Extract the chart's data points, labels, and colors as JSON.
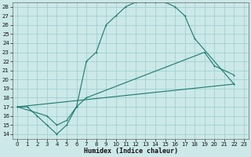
{
  "xlabel": "Humidex (Indice chaleur)",
  "background_color": "#cce8e8",
  "grid_color": "#99cccc",
  "line_color": "#1a7a6e",
  "xlim": [
    -0.5,
    23.5
  ],
  "ylim": [
    13.5,
    28.5
  ],
  "xticks": [
    0,
    1,
    2,
    3,
    4,
    5,
    6,
    7,
    8,
    9,
    10,
    11,
    12,
    13,
    14,
    15,
    16,
    17,
    18,
    19,
    20,
    21,
    22,
    23
  ],
  "yticks": [
    14,
    15,
    16,
    17,
    18,
    19,
    20,
    21,
    22,
    23,
    24,
    25,
    26,
    27,
    28
  ],
  "line1_x": [
    0,
    1,
    2,
    3,
    4,
    5,
    6,
    7,
    8,
    9,
    10,
    11,
    12,
    13,
    14,
    15,
    16,
    17,
    18,
    22
  ],
  "line1_y": [
    17,
    17,
    16,
    15,
    14,
    15,
    17,
    22,
    23,
    26,
    27,
    28,
    28.5,
    28.5,
    28.5,
    28.5,
    28,
    27,
    24.5,
    19.5
  ],
  "line2_x": [
    0,
    3,
    4,
    5,
    6,
    7,
    19,
    20,
    22
  ],
  "line2_y": [
    17,
    16,
    15,
    15.5,
    17,
    18,
    23,
    21.5,
    20.5
  ],
  "line3_x": [
    0,
    22
  ],
  "line3_y": [
    17,
    19.5
  ],
  "tick_fontsize": 5,
  "xlabel_fontsize": 6,
  "lw": 0.8,
  "ms": 2.0
}
